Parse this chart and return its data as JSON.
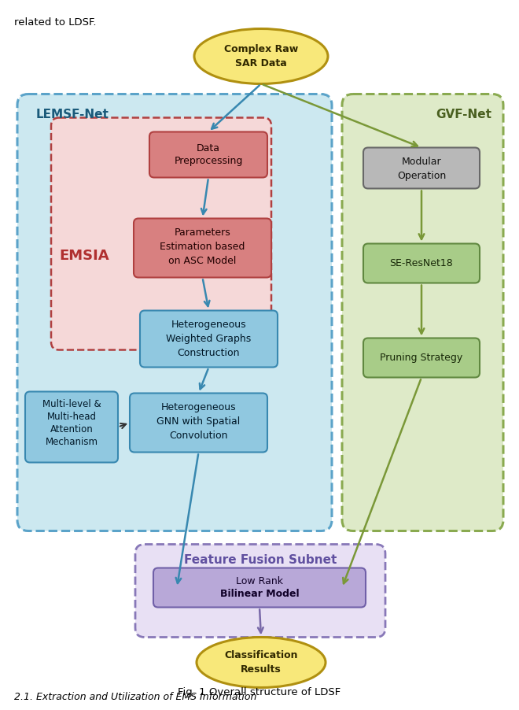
{
  "title": "Fig. 1 Overall structure of LDSF",
  "top_text": "related to LDSF.",
  "bottom_italic": "2.1. Extraction and Utilization of EMS Information",
  "colors": {
    "bg": "#ffffff",
    "lemsf_bg": "#cce8f0",
    "lemsf_border": "#5ba3c9",
    "lemsf_label": "#1a5a7a",
    "gvf_bg": "#deeac8",
    "gvf_border": "#8aaa50",
    "gvf_label": "#4a6020",
    "emsia_bg": "#f5d8d8",
    "emsia_border": "#b04040",
    "emsia_label": "#b03030",
    "fusion_bg": "#e8e0f4",
    "fusion_border": "#8878b8",
    "fusion_label": "#6050a0",
    "yellow_bg": "#f8e87a",
    "yellow_border": "#b09010",
    "yellow_text": "#302800",
    "red_box_bg": "#d88080",
    "red_box_border": "#b04040",
    "red_box_text": "#200000",
    "cyan_box_bg": "#90c8e0",
    "cyan_box_border": "#3888b0",
    "cyan_box_text": "#001828",
    "green_box_bg": "#a8cc88",
    "green_box_border": "#608840",
    "green_box_text": "#182808",
    "gray_box_bg": "#b8b8b8",
    "gray_box_border": "#686868",
    "gray_box_text": "#101010",
    "purple_box_bg": "#b8a8d8",
    "purple_box_border": "#7060a8",
    "purple_box_text": "#100028",
    "arrow_teal": "#3888b0",
    "arrow_olive": "#7a9838",
    "arrow_purple": "#7868a8",
    "arrow_dark": "#303030"
  },
  "fig_width": 6.4,
  "fig_height": 8.79
}
